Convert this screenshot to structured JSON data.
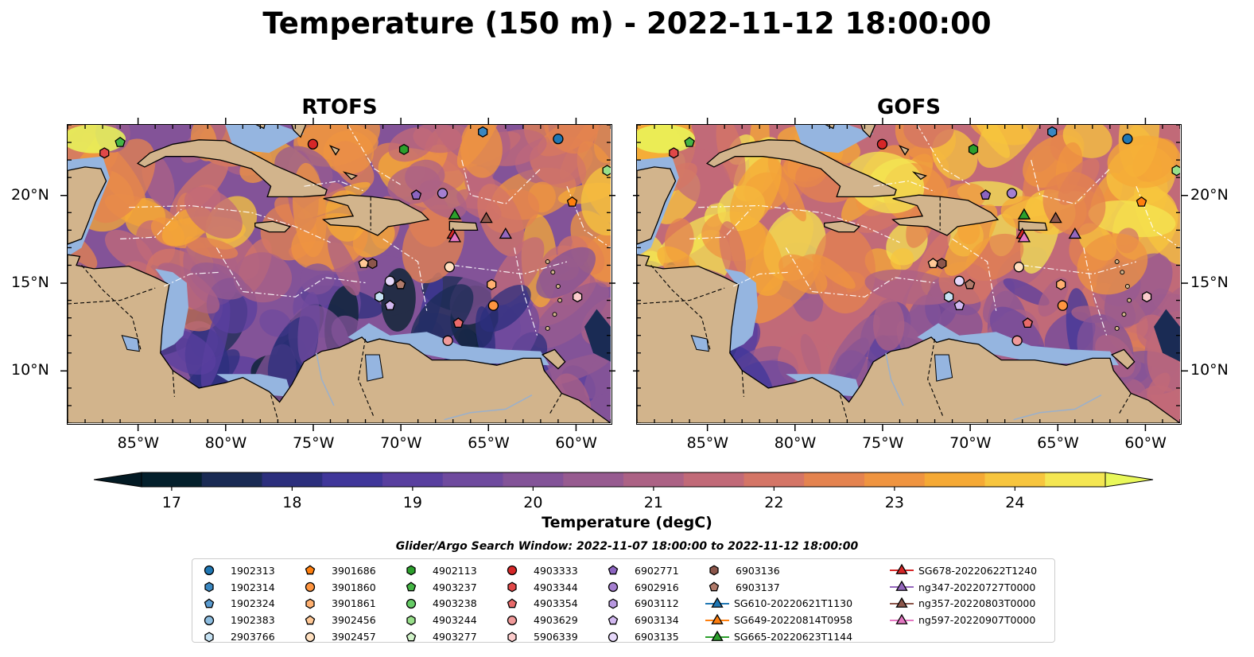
{
  "title": "Temperature (150 m) - 2022-11-12 18:00:00",
  "panels": [
    {
      "id": "rtofs",
      "title": "RTOFS"
    },
    {
      "id": "gofs",
      "title": "GOFS"
    }
  ],
  "map_extent": {
    "lon": [
      -89,
      -58
    ],
    "lat": [
      7,
      24
    ]
  },
  "lon_ticks": [
    {
      "value": -85,
      "label": "85°W"
    },
    {
      "value": -80,
      "label": "80°W"
    },
    {
      "value": -75,
      "label": "75°W"
    },
    {
      "value": -70,
      "label": "70°W"
    },
    {
      "value": -65,
      "label": "65°W"
    },
    {
      "value": -60,
      "label": "60°W"
    }
  ],
  "lat_ticks": [
    {
      "value": 20,
      "label": "20°N"
    },
    {
      "value": 15,
      "label": "15°N"
    },
    {
      "value": 10,
      "label": "10°N"
    }
  ],
  "colorbar": {
    "label": "Temperature (degC)",
    "min": 16.75,
    "max": 24.75,
    "ticks": [
      {
        "value": 17,
        "label": "17"
      },
      {
        "value": 18,
        "label": "18"
      },
      {
        "value": 19,
        "label": "19"
      },
      {
        "value": 20,
        "label": "20"
      },
      {
        "value": 21,
        "label": "21"
      },
      {
        "value": 22,
        "label": "22"
      },
      {
        "value": 23,
        "label": "23"
      },
      {
        "value": 24,
        "label": "24"
      }
    ],
    "colors": [
      "#04202c",
      "#1a2b54",
      "#2c2f7d",
      "#40379a",
      "#593f9f",
      "#6f4a9e",
      "#835398",
      "#975b90",
      "#ac6285",
      "#c16a78",
      "#d47566",
      "#e4834f",
      "#ef9440",
      "#f5a935",
      "#f7c53e",
      "#f4e652"
    ],
    "extend_color_high": "#e9f85a",
    "extend_color_low": "#031a24"
  },
  "search_window": "Glider/Argo Search Window: 2022-11-07 18:00:00 to 2022-11-12 18:00:00",
  "colors": {
    "land": "#d2b48c",
    "shelf": "#95b5e0",
    "river": "#9ab0cc"
  },
  "legend": {
    "columns": [
      [
        {
          "label": "1902313",
          "marker": "circle",
          "color": "#1f77b4"
        },
        {
          "label": "1902314",
          "marker": "hexagon",
          "color": "#3a87c0"
        },
        {
          "label": "1902324",
          "marker": "pentagon",
          "color": "#5a9bd0"
        },
        {
          "label": "1902383",
          "marker": "circle",
          "color": "#8dbde0"
        },
        {
          "label": "2903766",
          "marker": "hexagon",
          "color": "#c6e2f3"
        }
      ],
      [
        {
          "label": "3901686",
          "marker": "pentagon",
          "color": "#ff7f0e"
        },
        {
          "label": "3901860",
          "marker": "circle",
          "color": "#ff9540"
        },
        {
          "label": "3901861",
          "marker": "hexagon",
          "color": "#ffb070"
        },
        {
          "label": "3902456",
          "marker": "pentagon",
          "color": "#ffc896"
        },
        {
          "label": "3902457",
          "marker": "circle",
          "color": "#ffe0c0"
        }
      ],
      [
        {
          "label": "4902113",
          "marker": "hexagon",
          "color": "#2ca02c"
        },
        {
          "label": "4903237",
          "marker": "pentagon",
          "color": "#44b544"
        },
        {
          "label": "4903238",
          "marker": "circle",
          "color": "#66cc66"
        },
        {
          "label": "4903244",
          "marker": "hexagon",
          "color": "#98df8a"
        },
        {
          "label": "4903277",
          "marker": "pentagon",
          "color": "#d0f2c8"
        }
      ],
      [
        {
          "label": "4903333",
          "marker": "circle",
          "color": "#d62728"
        },
        {
          "label": "4903344",
          "marker": "hexagon",
          "color": "#e04848"
        },
        {
          "label": "4903354",
          "marker": "pentagon",
          "color": "#e86a6a"
        },
        {
          "label": "4903629",
          "marker": "circle",
          "color": "#f09a9a"
        },
        {
          "label": "5906339",
          "marker": "hexagon",
          "color": "#fccccc"
        }
      ],
      [
        {
          "label": "6902771",
          "marker": "pentagon",
          "color": "#8c64c0"
        },
        {
          "label": "6902916",
          "marker": "circle",
          "color": "#a57fd0"
        },
        {
          "label": "6903112",
          "marker": "hexagon",
          "color": "#b898e0"
        },
        {
          "label": "6903134",
          "marker": "pentagon",
          "color": "#d2b8f0"
        },
        {
          "label": "6903135",
          "marker": "circle",
          "color": "#e6d8fa"
        }
      ],
      [
        {
          "label": "6903136",
          "marker": "hexagon",
          "color": "#8c564b"
        },
        {
          "label": "6903137",
          "marker": "pentagon",
          "color": "#b07a6a"
        },
        {
          "label": "SG610-20220621T1130",
          "marker": "triangle-line",
          "color": "#1f77b4"
        },
        {
          "label": "SG649-20220814T0958",
          "marker": "triangle-line",
          "color": "#ff7f0e"
        },
        {
          "label": "SG665-20220623T1144",
          "marker": "triangle-line",
          "color": "#2ca02c"
        }
      ],
      [
        {
          "label": "SG678-20220622T1240",
          "marker": "triangle-line",
          "color": "#d62728"
        },
        {
          "label": "ng347-20220727T0000",
          "marker": "triangle-line",
          "color": "#9467bd"
        },
        {
          "label": "ng357-20220803T0000",
          "marker": "triangle-line",
          "color": "#8c564b"
        },
        {
          "label": "ng597-20220907T0000",
          "marker": "triangle-line",
          "color": "#e377c2"
        }
      ]
    ]
  },
  "markers": [
    {
      "lon": -86.9,
      "lat": 22.4,
      "marker": "hexagon",
      "color": "#e04848"
    },
    {
      "lon": -86.0,
      "lat": 23.0,
      "marker": "pentagon",
      "color": "#44b544"
    },
    {
      "lon": -75.0,
      "lat": 22.9,
      "marker": "circle",
      "color": "#d62728"
    },
    {
      "lon": -69.8,
      "lat": 22.6,
      "marker": "hexagon",
      "color": "#2ca02c"
    },
    {
      "lon": -65.3,
      "lat": 23.6,
      "marker": "hexagon",
      "color": "#3a87c0"
    },
    {
      "lon": -61.0,
      "lat": 23.2,
      "marker": "circle",
      "color": "#1f77b4"
    },
    {
      "lon": -58.2,
      "lat": 21.4,
      "marker": "hexagon",
      "color": "#98df8a"
    },
    {
      "lon": -60.2,
      "lat": 19.6,
      "marker": "pentagon",
      "color": "#ff7f0e"
    },
    {
      "lon": -69.1,
      "lat": 20.0,
      "marker": "pentagon",
      "color": "#8c64c0"
    },
    {
      "lon": -67.6,
      "lat": 20.1,
      "marker": "circle",
      "color": "#a57fd0"
    },
    {
      "lon": -72.1,
      "lat": 16.1,
      "marker": "pentagon",
      "color": "#ffc896"
    },
    {
      "lon": -71.6,
      "lat": 16.1,
      "marker": "hexagon",
      "color": "#8c564b"
    },
    {
      "lon": -67.2,
      "lat": 15.9,
      "marker": "circle",
      "color": "#ffe0c0"
    },
    {
      "lon": -70.6,
      "lat": 15.1,
      "marker": "circle",
      "color": "#e6d8fa"
    },
    {
      "lon": -70.0,
      "lat": 14.9,
      "marker": "pentagon",
      "color": "#b07a6a"
    },
    {
      "lon": -71.2,
      "lat": 14.2,
      "marker": "hexagon",
      "color": "#c6e2f3"
    },
    {
      "lon": -70.6,
      "lat": 13.7,
      "marker": "pentagon",
      "color": "#d2b8f0"
    },
    {
      "lon": -64.8,
      "lat": 14.9,
      "marker": "hexagon",
      "color": "#ffb070"
    },
    {
      "lon": -64.7,
      "lat": 13.7,
      "marker": "circle",
      "color": "#ff9540"
    },
    {
      "lon": -59.9,
      "lat": 14.2,
      "marker": "hexagon",
      "color": "#fccccc"
    },
    {
      "lon": -66.7,
      "lat": 12.7,
      "marker": "pentagon",
      "color": "#e86a6a"
    },
    {
      "lon": -67.3,
      "lat": 11.7,
      "marker": "circle",
      "color": "#f09a9a"
    },
    {
      "lon": -66.9,
      "lat": 18.9,
      "marker": "triangle",
      "color": "#2ca02c"
    },
    {
      "lon": -67.0,
      "lat": 17.8,
      "marker": "triangle",
      "color": "#d62728"
    },
    {
      "lon": -66.9,
      "lat": 17.6,
      "marker": "triangle",
      "color": "#e377c2"
    },
    {
      "lon": -65.1,
      "lat": 18.7,
      "marker": "triangle",
      "color": "#8c564b"
    },
    {
      "lon": -64.0,
      "lat": 17.8,
      "marker": "triangle",
      "color": "#9467bd"
    }
  ]
}
